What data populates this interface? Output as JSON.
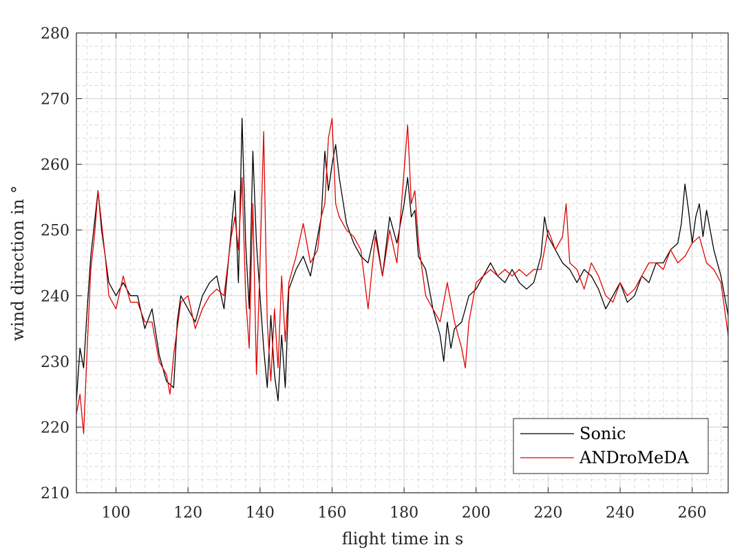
{
  "chart_data": {
    "type": "line",
    "xlabel": "flight time in s",
    "ylabel": "wind direction in °",
    "xlim": [
      89,
      270
    ],
    "ylim": [
      210,
      280
    ],
    "xticks": [
      100,
      120,
      140,
      160,
      180,
      200,
      220,
      240,
      260
    ],
    "yticks": [
      210,
      220,
      230,
      240,
      250,
      260,
      270,
      280
    ],
    "xtick_labels": [
      "100",
      "120",
      "140",
      "160",
      "180",
      "200",
      "220",
      "240",
      "260"
    ],
    "ytick_labels": [
      "210",
      "220",
      "230",
      "240",
      "250",
      "260",
      "270",
      "280"
    ],
    "grid": true,
    "minor_grid": true,
    "legend_position": "lower-right",
    "series": [
      {
        "name": "Sonic",
        "color": "#000000",
        "x": [
          89,
          90,
          91,
          92,
          93,
          94,
          95,
          96,
          97,
          98,
          100,
          102,
          104,
          106,
          108,
          110,
          112,
          114,
          116,
          117,
          118,
          120,
          122,
          124,
          126,
          128,
          130,
          132,
          133,
          134,
          135,
          136,
          137,
          138,
          139,
          140,
          141,
          142,
          143,
          144,
          145,
          146,
          147,
          148,
          150,
          152,
          154,
          156,
          157,
          158,
          159,
          160,
          161,
          162,
          164,
          166,
          168,
          170,
          172,
          174,
          176,
          178,
          180,
          181,
          182,
          183,
          184,
          186,
          188,
          190,
          191,
          192,
          193,
          194,
          196,
          198,
          200,
          202,
          204,
          206,
          208,
          210,
          212,
          214,
          216,
          218,
          219,
          220,
          222,
          224,
          226,
          228,
          230,
          232,
          234,
          236,
          238,
          240,
          242,
          244,
          246,
          248,
          250,
          252,
          254,
          256,
          257,
          258,
          259,
          260,
          261,
          262,
          263,
          264,
          266,
          268,
          270
        ],
        "values": [
          224,
          232,
          229,
          238,
          246,
          251,
          256,
          250,
          246,
          242,
          240,
          242,
          240,
          240,
          235,
          238,
          231,
          227,
          226,
          236,
          240,
          238,
          236,
          240,
          242,
          243,
          238,
          250,
          256,
          242,
          267,
          248,
          238,
          262,
          248,
          240,
          232,
          226,
          237,
          228,
          224,
          234,
          226,
          241,
          244,
          246,
          243,
          249,
          252,
          262,
          256,
          260,
          263,
          258,
          251,
          248,
          246,
          245,
          250,
          243,
          252,
          248,
          254,
          258,
          252,
          253,
          246,
          244,
          238,
          234,
          230,
          236,
          232,
          235,
          236,
          240,
          241,
          243,
          245,
          243,
          242,
          244,
          242,
          241,
          242,
          246,
          252,
          249,
          247,
          245,
          244,
          242,
          244,
          243,
          241,
          238,
          240,
          242,
          239,
          240,
          243,
          242,
          245,
          245,
          247,
          248,
          251,
          257,
          253,
          248,
          252,
          254,
          249,
          253,
          247,
          243,
          237
        ]
      },
      {
        "name": "ANDroMeDA",
        "color": "#e00000",
        "x": [
          89,
          90,
          91,
          92,
          93,
          94,
          95,
          96,
          97,
          98,
          100,
          102,
          104,
          106,
          108,
          110,
          112,
          114,
          115,
          116,
          118,
          120,
          122,
          124,
          126,
          128,
          130,
          132,
          133,
          134,
          135,
          136,
          137,
          138,
          139,
          140,
          141,
          142,
          143,
          144,
          145,
          146,
          147,
          148,
          150,
          152,
          154,
          156,
          157,
          158,
          159,
          160,
          161,
          162,
          164,
          166,
          168,
          170,
          172,
          174,
          176,
          178,
          180,
          181,
          182,
          183,
          184,
          186,
          188,
          190,
          192,
          194,
          196,
          197,
          198,
          200,
          202,
          204,
          206,
          208,
          210,
          212,
          214,
          216,
          218,
          220,
          222,
          224,
          225,
          226,
          228,
          230,
          232,
          234,
          236,
          238,
          240,
          242,
          244,
          246,
          248,
          250,
          252,
          254,
          256,
          258,
          260,
          262,
          264,
          266,
          268,
          270
        ],
        "values": [
          222,
          225,
          219,
          232,
          244,
          249,
          256,
          251,
          246,
          240,
          238,
          243,
          239,
          239,
          236,
          236,
          230,
          228,
          225,
          231,
          239,
          240,
          235,
          238,
          240,
          241,
          240,
          249,
          252,
          247,
          258,
          240,
          232,
          254,
          228,
          245,
          265,
          236,
          227,
          238,
          229,
          243,
          233,
          242,
          246,
          251,
          245,
          247,
          252,
          254,
          264,
          267,
          254,
          252,
          250,
          249,
          247,
          238,
          249,
          243,
          250,
          245,
          259,
          266,
          254,
          256,
          248,
          240,
          238,
          236,
          242,
          236,
          232,
          229,
          236,
          242,
          243,
          244,
          243,
          244,
          243,
          244,
          243,
          244,
          244,
          250,
          247,
          249,
          254,
          245,
          244,
          241,
          245,
          243,
          240,
          239,
          242,
          240,
          241,
          243,
          245,
          245,
          244,
          247,
          245,
          246,
          248,
          249,
          245,
          244,
          242,
          234
        ]
      }
    ]
  }
}
